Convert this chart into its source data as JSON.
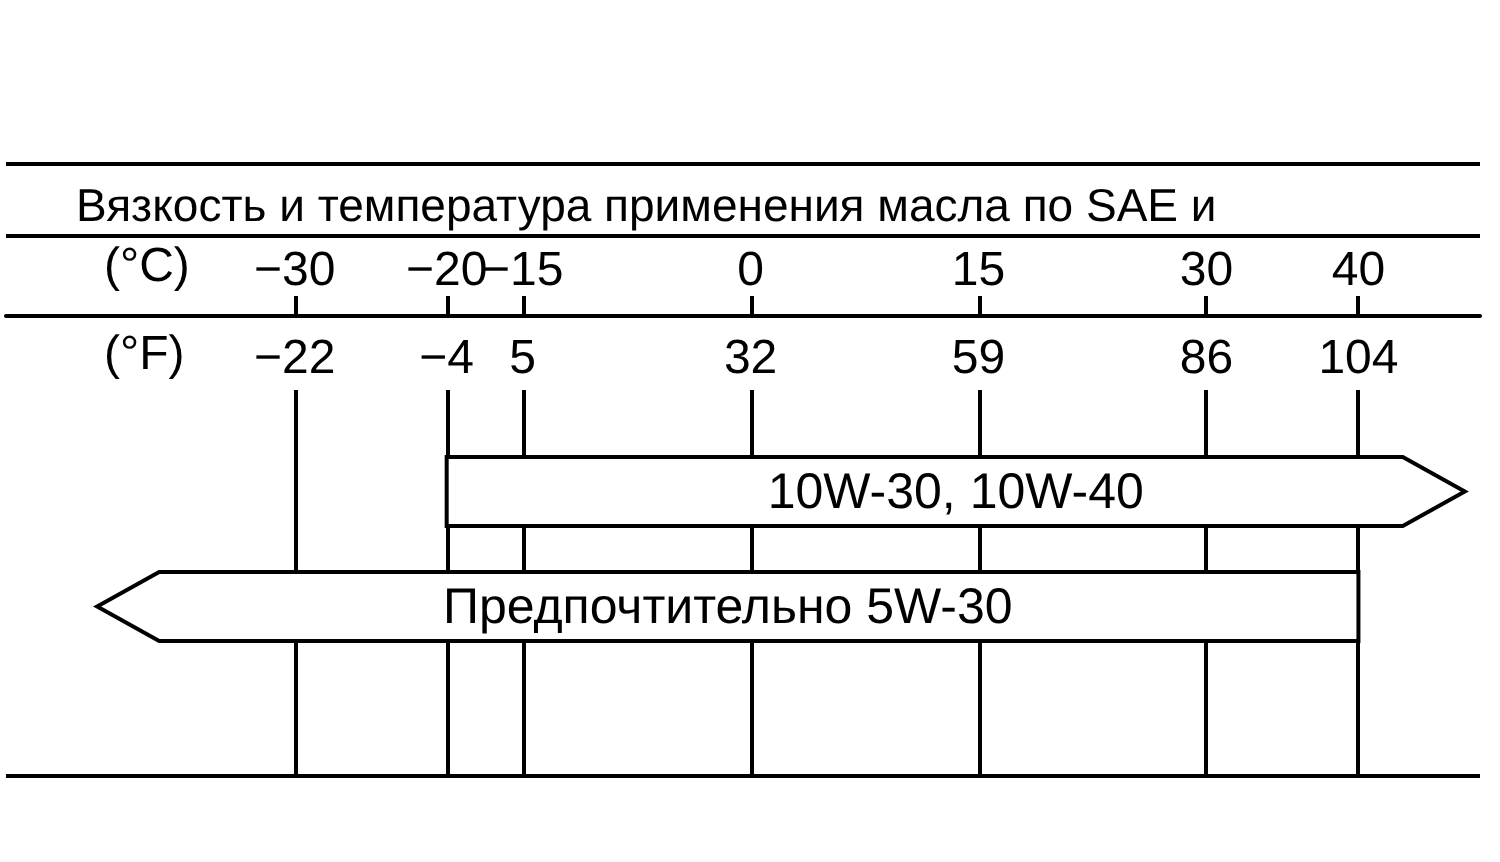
{
  "chart_data": {
    "type": "bar",
    "orientation": "horizontal",
    "title": "Вязкость и температура применения масла по SAE и",
    "xlabel": "(°C)",
    "x2label": "(°F)",
    "categories": [
      "10W-30, 10W-40",
      "Предпочтительно 5W-30"
    ],
    "values": [
      67,
      83
    ],
    "base": [
      -20,
      -43
    ],
    "color": "#ffffff",
    "xlim": [
      -49,
      48
    ],
    "xticks": [
      {
        "value": -30,
        "label": "−30"
      },
      {
        "value": -20,
        "label": "−20"
      },
      {
        "value": -15,
        "label": "−15"
      },
      0,
      15,
      30,
      40
    ],
    "x2lim": [
      -56.2,
      118.4
    ],
    "x2ticks": [
      {
        "value": -22,
        "label": "−22"
      },
      {
        "value": -4,
        "label": "−4"
      },
      5,
      32,
      59,
      86,
      104
    ],
    "grid": "x"
  }
}
